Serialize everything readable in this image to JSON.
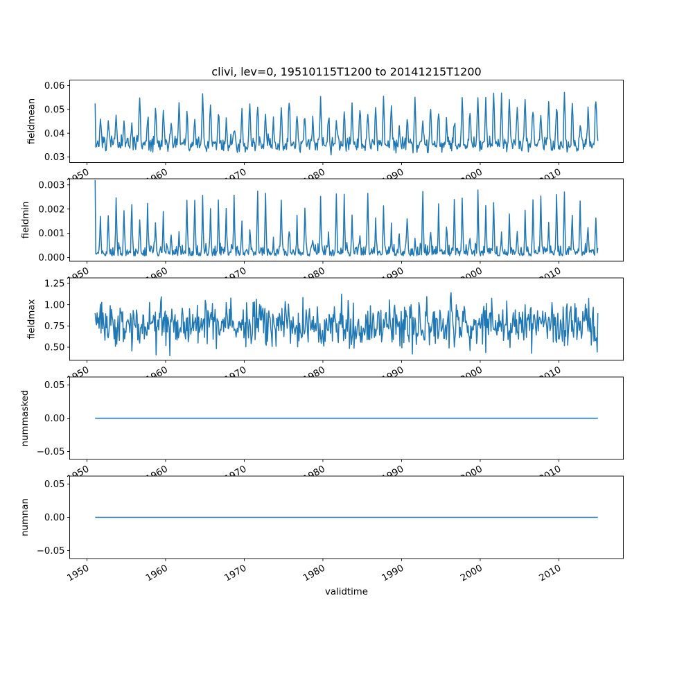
{
  "chart_data": {
    "type": "line",
    "title": "clivi, lev=0, 19510115T1200 to 20141215T1200",
    "xlabel": "validtime",
    "line_color": "#1f77b4",
    "x": {
      "start_year": 1951,
      "years": 64,
      "points_per_year": 12,
      "xlim": [
        1947.8,
        2018.2
      ],
      "xticks": {
        "values": [
          1950,
          1960,
          1970,
          1980,
          1990,
          2000,
          2010
        ],
        "labels": [
          "1950",
          "1960",
          "1970",
          "1980",
          "1990",
          "2000",
          "2010"
        ]
      }
    },
    "subplots": [
      {
        "name": "fieldmean",
        "ylabel": "fieldmean",
        "ylim": [
          0.0277,
          0.0623
        ],
        "yticks": {
          "values": [
            0.03,
            0.04,
            0.05,
            0.06
          ],
          "labels": [
            "0.03",
            "0.04",
            "0.05",
            "0.06"
          ]
        },
        "summary": {
          "observed_min": 0.0295,
          "observed_max": 0.0597,
          "description": "noisy monthly series around 0.033-0.045 with annual peaks up to ~0.05-0.06"
        },
        "model": {
          "kind": "seasonal_peaks",
          "base": 0.0353,
          "base_noise": 0.0013,
          "peak_min": 0.008,
          "peak_max": 0.021,
          "peak_phase": 0.46,
          "peak_sharpness": 3,
          "noise": 0.0009,
          "clip": [
            0.0296,
            0.0597
          ],
          "first_value": 0.0525,
          "seed": 7
        }
      },
      {
        "name": "fieldmin",
        "ylabel": "fieldmin",
        "ylim": [
          -0.00016,
          0.00325
        ],
        "yticks": {
          "values": [
            0.0,
            0.001,
            0.002,
            0.003
          ],
          "labels": [
            "0.000",
            "0.001",
            "0.002",
            "0.003"
          ]
        },
        "summary": {
          "observed_min": 0.0,
          "observed_max": 0.0032,
          "description": "near-zero baseline with sharp annual spikes up to 0.002-0.003"
        },
        "model": {
          "kind": "seasonal_spikes",
          "floor": 6e-05,
          "floor_noise": 0.00022,
          "peak_min": 0.0005,
          "peak_max": 0.0026,
          "peak_phase": 0.46,
          "peak_sharpness": 6,
          "clip": [
            2e-05,
            0.00305
          ],
          "first_value": 0.0032,
          "seed": 11
        }
      },
      {
        "name": "fieldmax",
        "ylabel": "fieldmax",
        "ylim": [
          0.345,
          1.315
        ],
        "yticks": {
          "values": [
            0.5,
            0.75,
            1.0,
            1.25
          ],
          "labels": [
            "0.50",
            "0.75",
            "1.00",
            "1.25"
          ]
        },
        "summary": {
          "observed_min": 0.39,
          "observed_max": 1.27,
          "description": "dense noisy series fluctuating around ~0.75, range ~0.4-1.25"
        },
        "model": {
          "kind": "noisy",
          "mean": 0.77,
          "seasonal_amp": 0.05,
          "noise_sd": 0.13,
          "clip": [
            0.385,
            1.27
          ],
          "first_value": 0.9,
          "seed": 23
        }
      },
      {
        "name": "nummasked",
        "ylabel": "nummasked",
        "ylim": [
          -0.062,
          0.062
        ],
        "yticks": {
          "values": [
            -0.05,
            0.0,
            0.05
          ],
          "labels": [
            "−0.05",
            "0.00",
            "0.05"
          ]
        },
        "summary": {
          "observed_min": 0,
          "observed_max": 0,
          "description": "constant zero line"
        },
        "model": {
          "kind": "constant",
          "value": 0,
          "seed": 1
        }
      },
      {
        "name": "numnan",
        "ylabel": "numnan",
        "ylim": [
          -0.062,
          0.062
        ],
        "yticks": {
          "values": [
            -0.05,
            0.0,
            0.05
          ],
          "labels": [
            "−0.05",
            "0.00",
            "0.05"
          ]
        },
        "summary": {
          "observed_min": 0,
          "observed_max": 0,
          "description": "constant zero line"
        },
        "model": {
          "kind": "constant",
          "value": 0,
          "seed": 2
        }
      }
    ]
  }
}
